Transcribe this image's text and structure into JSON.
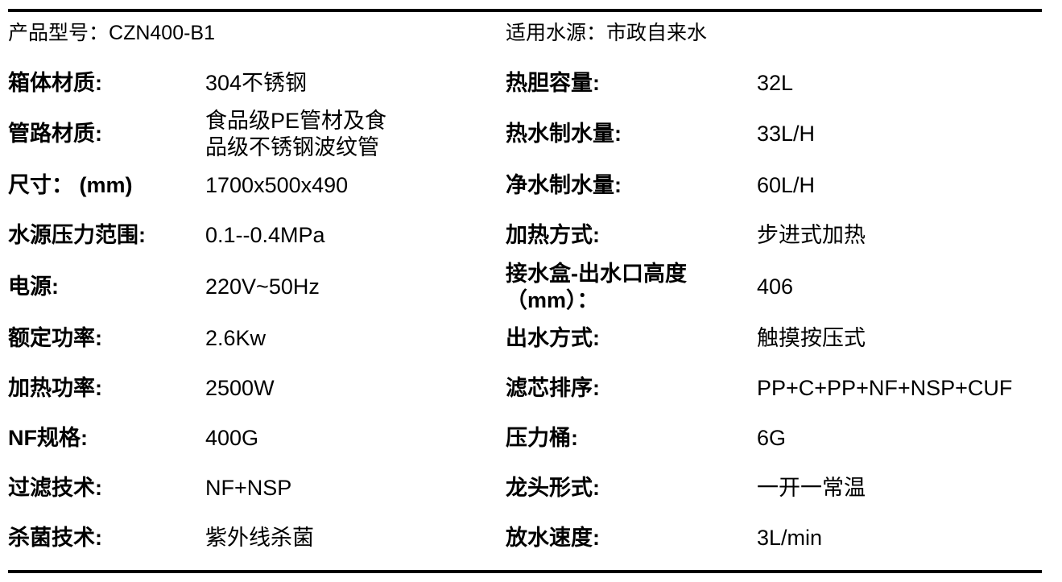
{
  "header": {
    "product_model": {
      "label": "产品型号：",
      "value": "CZN400-B1"
    },
    "water_source": {
      "label": "适用水源：",
      "value": "市政自来水"
    }
  },
  "rows": [
    {
      "left": {
        "label": "箱体材质:",
        "value": "304不锈钢"
      },
      "right": {
        "label": "热胆容量:",
        "value": "32L"
      }
    },
    {
      "left": {
        "label": "管路材质:",
        "value": "食品级PE管材及食\n品级不锈钢波纹管"
      },
      "right": {
        "label": "热水制水量:",
        "value": "33L/H"
      }
    },
    {
      "left": {
        "label": "尺寸： (mm)",
        "value": "1700x500x490"
      },
      "right": {
        "label": "净水制水量:",
        "value": "60L/H"
      }
    },
    {
      "left": {
        "label": "水源压力范围:",
        "value": "0.1--0.4MPa"
      },
      "right": {
        "label": "加热方式:",
        "value": "步进式加热"
      }
    },
    {
      "left": {
        "label": "电源:",
        "value": "220V~50Hz"
      },
      "right": {
        "label": "接水盒-出水口高度\n（mm）：",
        "value": "406"
      }
    },
    {
      "left": {
        "label": "额定功率:",
        "value": "2.6Kw"
      },
      "right": {
        "label": "出水方式:",
        "value": "触摸按压式"
      }
    },
    {
      "left": {
        "label": "加热功率:",
        "value": "2500W"
      },
      "right": {
        "label": "滤芯排序:",
        "value": "PP+C+PP+NF+NSP+CUF"
      }
    },
    {
      "left": {
        "label": "NF规格:",
        "value": "400G"
      },
      "right": {
        "label": "压力桶:",
        "value": "6G"
      }
    },
    {
      "left": {
        "label": "过滤技术:",
        "value": "NF+NSP"
      },
      "right": {
        "label": "龙头形式:",
        "value": "一开一常温"
      }
    },
    {
      "left": {
        "label": "杀菌技术:",
        "value": "紫外线杀菌"
      },
      "right": {
        "label": "放水速度:",
        "value": "3L/min"
      }
    }
  ],
  "colors": {
    "text": "#000000",
    "background": "#ffffff",
    "rule": "#000000"
  }
}
